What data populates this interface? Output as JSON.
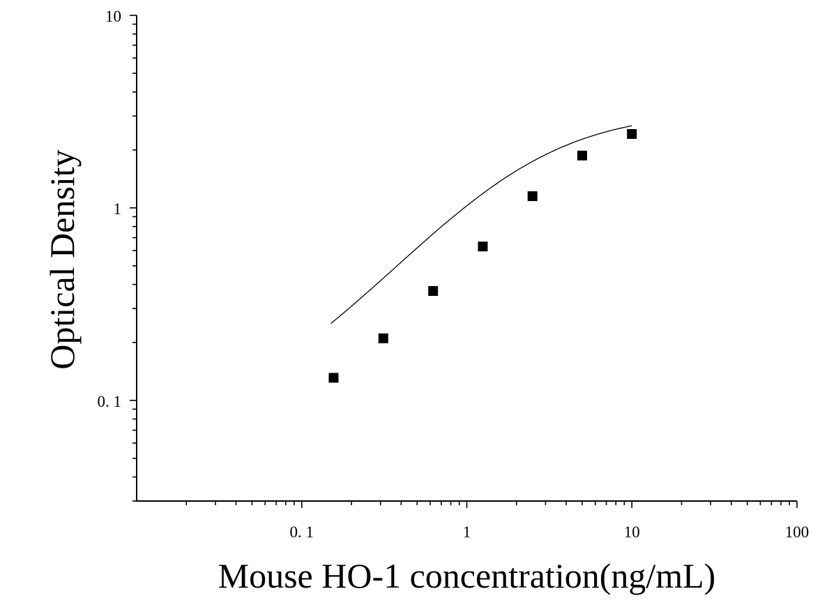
{
  "chart_data": {
    "type": "scatter",
    "xlabel": "Mouse HO-1 concentration(ng/mL)",
    "ylabel": "Optical Density",
    "x_scale": "log",
    "y_scale": "log",
    "xlim": [
      0.01,
      100
    ],
    "ylim": [
      0.03,
      10
    ],
    "x_tick_labels": [
      {
        "value": 0.1,
        "label": "0. 1"
      },
      {
        "value": 1,
        "label": "1"
      },
      {
        "value": 10,
        "label": "10"
      },
      {
        "value": 100,
        "label": "100"
      }
    ],
    "y_tick_labels": [
      {
        "value": 0.1,
        "label": "0. 1"
      },
      {
        "value": 1,
        "label": "1"
      },
      {
        "value": 10,
        "label": "10"
      }
    ],
    "grid": false,
    "series": [
      {
        "marker": "square",
        "color": "#000000",
        "x": [
          0.156,
          0.312,
          0.625,
          1.25,
          2.5,
          5,
          10
        ],
        "y": [
          0.131,
          0.21,
          0.37,
          0.63,
          1.15,
          1.87,
          2.42
        ]
      }
    ],
    "fit_curve": {
      "type": "4-parameter logistic",
      "color": "#000000",
      "x_range": [
        0.15,
        10
      ],
      "A": 0.075,
      "D": 3.2,
      "C": 2.2,
      "B": 1.05
    }
  }
}
